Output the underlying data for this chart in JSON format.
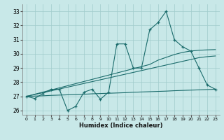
{
  "xlabel": "Humidex (Indice chaleur)",
  "background_color": "#c8e8e8",
  "grid_color": "#a0cccc",
  "line_color": "#1a6b6b",
  "x_values": [
    0,
    1,
    2,
    3,
    4,
    5,
    6,
    7,
    8,
    9,
    10,
    11,
    12,
    13,
    14,
    15,
    16,
    17,
    18,
    19,
    20,
    21,
    22,
    23
  ],
  "y_main": [
    27.0,
    26.85,
    27.2,
    27.5,
    27.5,
    26.0,
    26.3,
    27.3,
    27.5,
    26.8,
    27.3,
    30.7,
    30.7,
    29.0,
    29.0,
    31.7,
    32.2,
    33.0,
    31.0,
    30.5,
    30.2,
    29.0,
    27.8,
    27.5
  ],
  "y_reg1": [
    27.0,
    27.02,
    27.04,
    27.07,
    27.09,
    27.11,
    27.13,
    27.15,
    27.18,
    27.2,
    27.22,
    27.24,
    27.26,
    27.29,
    27.31,
    27.33,
    27.35,
    27.37,
    27.4,
    27.42,
    27.44,
    27.46,
    27.48,
    27.5
  ],
  "y_reg2": [
    27.0,
    27.13,
    27.26,
    27.39,
    27.52,
    27.65,
    27.78,
    27.91,
    28.04,
    28.17,
    28.3,
    28.43,
    28.56,
    28.69,
    28.82,
    28.95,
    29.08,
    29.21,
    29.34,
    29.47,
    29.6,
    29.73,
    29.8,
    29.85
  ],
  "y_reg3": [
    27.0,
    27.15,
    27.3,
    27.45,
    27.6,
    27.75,
    27.9,
    28.05,
    28.2,
    28.35,
    28.5,
    28.65,
    28.8,
    28.95,
    29.1,
    29.25,
    29.55,
    29.75,
    29.95,
    30.1,
    30.2,
    30.25,
    30.28,
    30.3
  ],
  "ylim": [
    25.7,
    33.5
  ],
  "xlim": [
    -0.5,
    23.5
  ],
  "yticks": [
    26,
    27,
    28,
    29,
    30,
    31,
    32,
    33
  ],
  "xticks": [
    0,
    1,
    2,
    3,
    4,
    5,
    6,
    7,
    8,
    9,
    10,
    11,
    12,
    13,
    14,
    15,
    16,
    17,
    18,
    19,
    20,
    21,
    22,
    23
  ]
}
